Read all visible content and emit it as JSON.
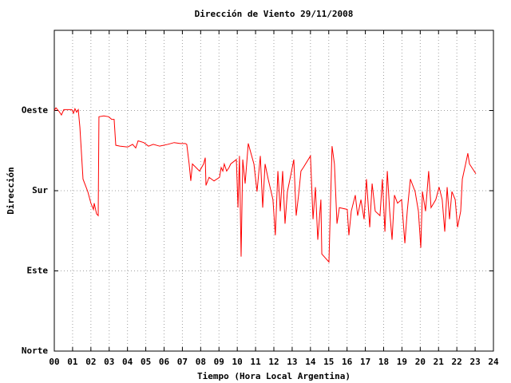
{
  "chart_data": {
    "type": "line",
    "title": "Dirección de Viento 29/11/2008",
    "xlabel": "Tiempo (Hora Local Argentina)",
    "ylabel": "Dirección",
    "color": "#ff0000",
    "grid": true,
    "xlim": [
      0,
      24
    ],
    "ylim": [
      0,
      360
    ],
    "xticks": [
      {
        "value": 0,
        "label": "00"
      },
      {
        "value": 1,
        "label": "01"
      },
      {
        "value": 2,
        "label": "02"
      },
      {
        "value": 3,
        "label": "03"
      },
      {
        "value": 4,
        "label": "04"
      },
      {
        "value": 5,
        "label": "05"
      },
      {
        "value": 6,
        "label": "06"
      },
      {
        "value": 7,
        "label": "07"
      },
      {
        "value": 8,
        "label": "08"
      },
      {
        "value": 9,
        "label": "09"
      },
      10,
      11,
      12,
      13,
      14,
      15,
      16,
      17,
      18,
      19,
      20,
      21,
      22,
      23,
      24
    ],
    "yticks": [
      {
        "value": 0,
        "label": "Norte"
      },
      {
        "value": 90,
        "label": "Este"
      },
      {
        "value": 180,
        "label": "Sur"
      },
      {
        "value": 270,
        "label": "Oeste"
      }
    ],
    "x": [
      0,
      0.09,
      0.26,
      0.39,
      0.52,
      0.96,
      1.05,
      1.13,
      1.22,
      1.31,
      1.4,
      1.57,
      1.83,
      2.0,
      2.14,
      2.18,
      2.31,
      2.4,
      2.44,
      2.71,
      2.97,
      3.14,
      3.27,
      3.36,
      3.58,
      4.01,
      4.28,
      4.45,
      4.58,
      4.89,
      5.15,
      5.41,
      5.76,
      6.2,
      6.55,
      6.89,
      7.16,
      7.24,
      7.37,
      7.46,
      7.55,
      7.94,
      8.16,
      8.25,
      8.29,
      8.46,
      8.73,
      9.03,
      9.12,
      9.21,
      9.29,
      9.42,
      9.55,
      9.64,
      9.95,
      10.04,
      10.12,
      10.21,
      10.3,
      10.43,
      10.6,
      10.91,
      11.08,
      11.26,
      11.39,
      11.52,
      11.69,
      11.95,
      12.08,
      12.22,
      12.35,
      12.48,
      12.61,
      12.74,
      12.92,
      13.09,
      13.22,
      13.35,
      13.48,
      13.61,
      14.0,
      14.14,
      14.27,
      14.4,
      14.57,
      14.62,
      15.01,
      15.18,
      15.31,
      15.45,
      15.58,
      16.01,
      16.1,
      16.23,
      16.45,
      16.58,
      16.76,
      16.93,
      17.06,
      17.24,
      17.37,
      17.54,
      17.8,
      17.93,
      18.07,
      18.2,
      18.33,
      18.46,
      18.59,
      18.76,
      18.98,
      19.16,
      19.29,
      19.46,
      19.72,
      19.9,
      20.03,
      20.12,
      20.29,
      20.46,
      20.59,
      20.85,
      21.03,
      21.2,
      21.34,
      21.47,
      21.6,
      21.73,
      21.91,
      22.04,
      22.21,
      22.3,
      22.48,
      22.6,
      22.69,
      23.04
    ],
    "values": [
      270,
      273,
      269,
      265,
      271,
      271,
      267,
      272,
      268,
      271,
      251,
      193,
      179,
      166,
      159,
      166,
      154,
      152,
      263,
      264,
      263,
      260,
      260,
      231,
      230,
      229,
      232,
      228,
      236,
      234,
      230,
      232,
      230,
      232,
      234,
      233,
      233,
      232,
      210,
      191,
      210,
      202,
      210,
      217,
      186,
      195,
      191,
      195,
      206,
      202,
      210,
      202,
      206,
      210,
      215,
      161,
      219,
      106,
      215,
      188,
      233,
      210,
      179,
      219,
      161,
      210,
      193,
      170,
      130,
      202,
      157,
      202,
      143,
      179,
      197,
      215,
      152,
      175,
      202,
      206,
      219,
      148,
      184,
      125,
      170,
      109,
      100,
      230,
      210,
      143,
      161,
      159,
      130,
      157,
      175,
      152,
      170,
      148,
      193,
      139,
      188,
      157,
      152,
      193,
      134,
      202,
      157,
      125,
      175,
      166,
      170,
      121,
      157,
      193,
      179,
      157,
      116,
      179,
      157,
      202,
      161,
      170,
      184,
      170,
      134,
      184,
      148,
      179,
      170,
      139,
      157,
      193,
      210,
      222,
      210,
      199
    ]
  }
}
